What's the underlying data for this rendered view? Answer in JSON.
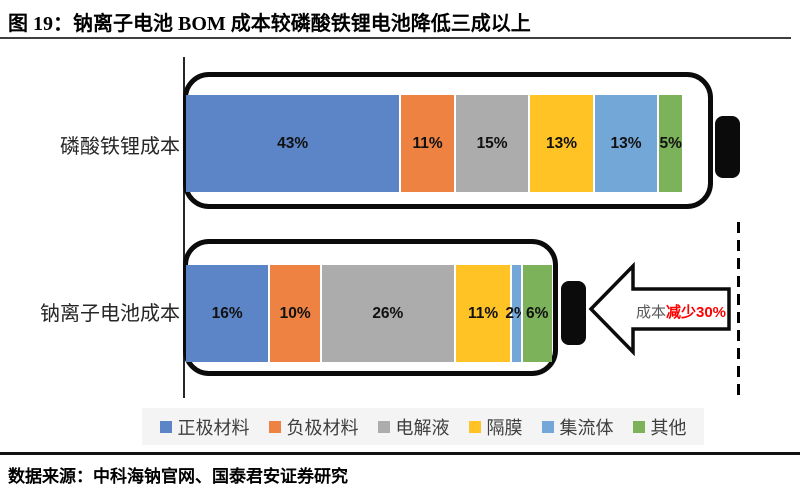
{
  "figure": {
    "title": "图 19：钠离子电池 BOM 成本较磷酸铁锂电池降低三成以上",
    "source": "数据来源：中科海钠官网、国泰君安证券研究"
  },
  "annotation": {
    "prefix": "成本",
    "highlight": "减少30%"
  },
  "chart_data": {
    "type": "bar",
    "subtype": "stacked-horizontal",
    "unit": "percent",
    "categories": [
      "磷酸铁锂成本",
      "钠离子电池成本"
    ],
    "series": [
      {
        "name": "正极材料",
        "color": "#5C85C8",
        "values": [
          43,
          16
        ]
      },
      {
        "name": "负极材料",
        "color": "#ED8243",
        "values": [
          11,
          10
        ]
      },
      {
        "name": "电解液",
        "color": "#ACACAC",
        "values": [
          15,
          26
        ]
      },
      {
        "name": "隔膜",
        "color": "#FFC326",
        "values": [
          13,
          11
        ]
      },
      {
        "name": "集流体",
        "color": "#73A7D8",
        "values": [
          13,
          2
        ]
      },
      {
        "name": "其他",
        "color": "#7CB25A",
        "values": [
          5,
          6
        ]
      }
    ],
    "xlim": [
      0,
      100
    ],
    "grid": false,
    "legend_position": "bottom",
    "annotation": "成本减少30%"
  }
}
